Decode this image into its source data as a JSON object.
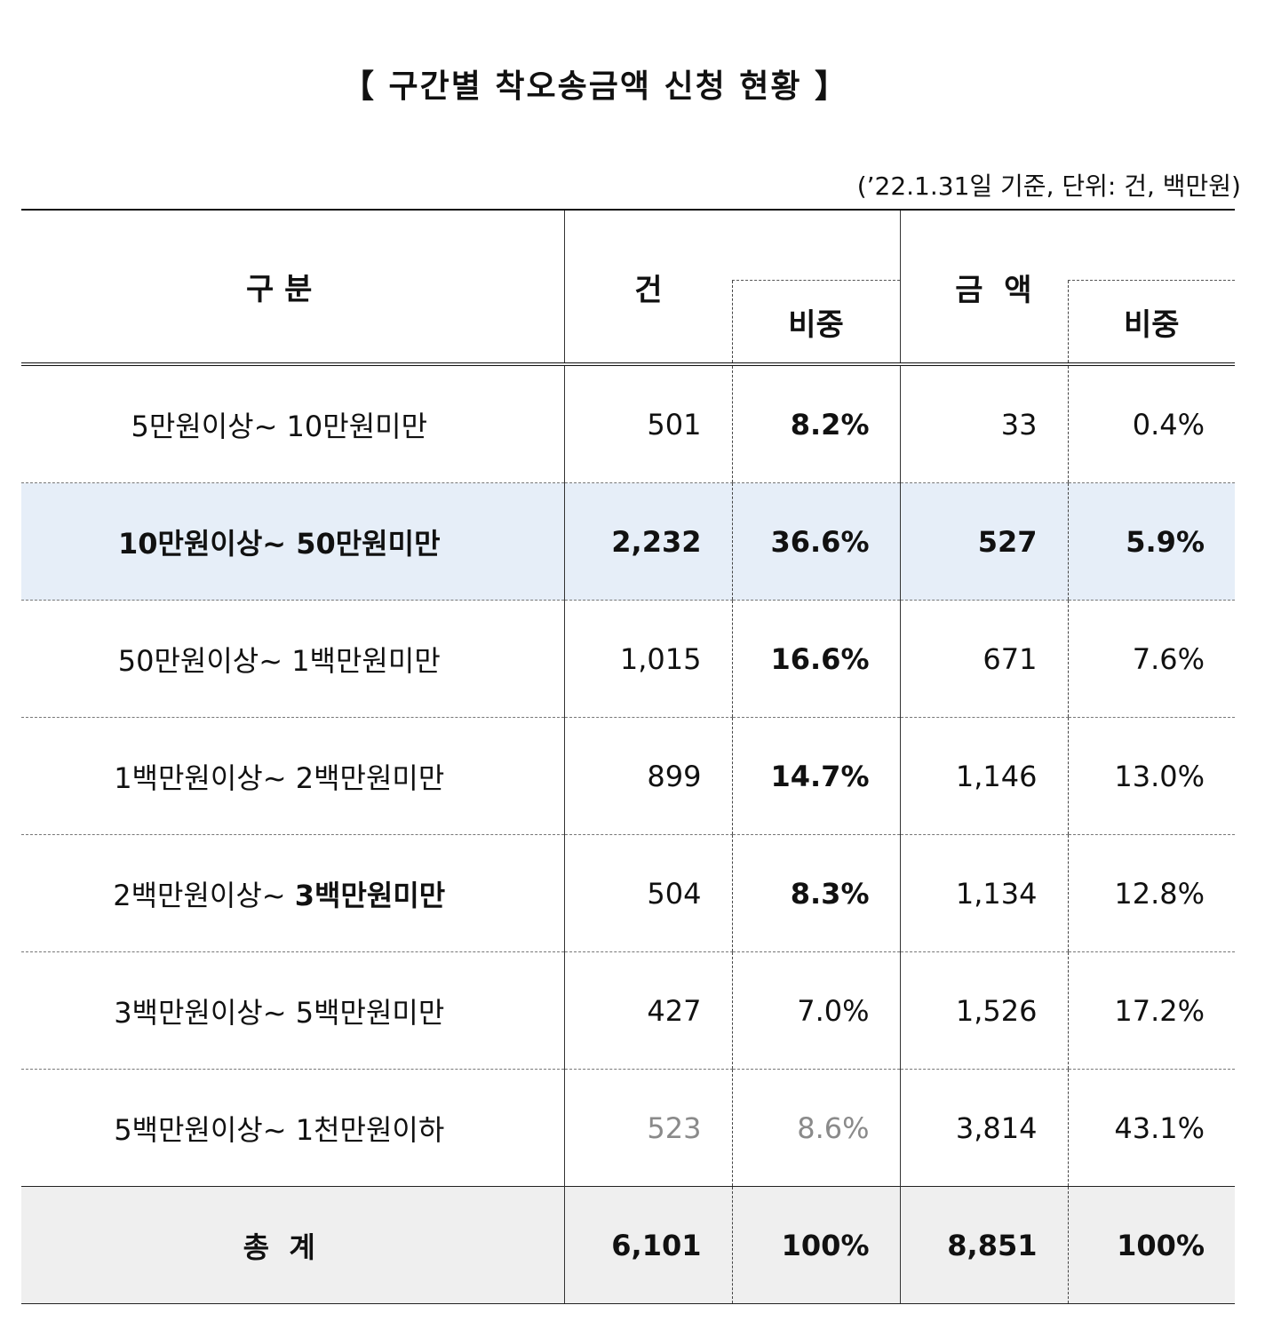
{
  "title": "【 구간별 착오송금액 신청 현황 】",
  "unit_note": "(’22.1.31일 기준, 단위: 건, 백만원)",
  "headers": {
    "category": "구 분",
    "count": "건",
    "count_share": "비중",
    "amount": "금  액",
    "amount_share": "비중"
  },
  "rows": [
    {
      "label": "5만원이상~ 10만원미만",
      "count": "501",
      "count_share": "8.2%",
      "amount": "33",
      "amount_share": "0.4%"
    },
    {
      "label": "10만원이상~ 50만원미만",
      "count": "2,232",
      "count_share": "36.6%",
      "amount": "527",
      "amount_share": "5.9%"
    },
    {
      "label": "50만원이상~ 1백만원미만",
      "count": "1,015",
      "count_share": "16.6%",
      "amount": "671",
      "amount_share": "7.6%"
    },
    {
      "label": "1백만원이상~ 2백만원미만",
      "count": "899",
      "count_share": "14.7%",
      "amount": "1,146",
      "amount_share": "13.0%"
    },
    {
      "label_a": "2백만원이상~ ",
      "label_b": "3백만원미만",
      "count": "504",
      "count_share": "8.3%",
      "amount": "1,134",
      "amount_share": "12.8%"
    },
    {
      "label": "3백만원이상~ 5백만원미만",
      "count": "427",
      "count_share": "7.0%",
      "amount": "1,526",
      "amount_share": "17.2%"
    },
    {
      "label": "5백만원이상~ 1천만원이하",
      "count": "523",
      "count_share": "8.6%",
      "amount": "3,814",
      "amount_share": "43.1%"
    }
  ],
  "total": {
    "label": "총  계",
    "count": "6,101",
    "count_share": "100%",
    "amount": "8,851",
    "amount_share": "100%"
  },
  "colors": {
    "highlight_row": "#e6eef8",
    "total_row": "#efefef"
  }
}
